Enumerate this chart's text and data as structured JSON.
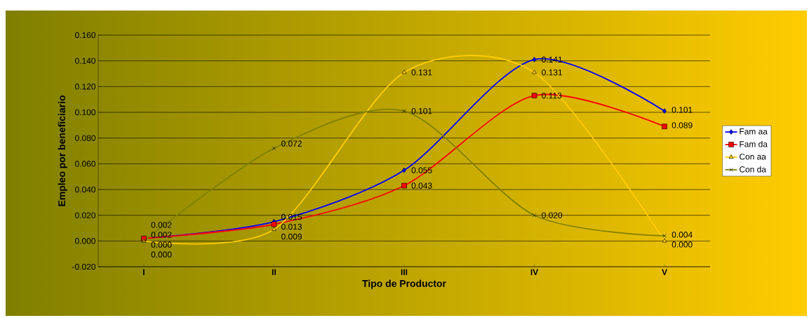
{
  "chart_data": {
    "type": "line",
    "xlabel": "Tipo de Productor",
    "ylabel": "Empleo por beneficiario",
    "categories": [
      "I",
      "II",
      "III",
      "IV",
      "V"
    ],
    "series": [
      {
        "name": "Fam aa",
        "color": "#0000ff",
        "marker": "diamond",
        "values": [
          0.002,
          0.015,
          0.055,
          0.141,
          0.101
        ],
        "value_labels": [
          "0.002",
          "0.015",
          "0.055",
          "0.141",
          "0.101"
        ]
      },
      {
        "name": "Fam da",
        "color": "#ff0000",
        "marker": "square",
        "values": [
          0.002,
          0.013,
          0.043,
          0.113,
          0.089
        ],
        "value_labels": [
          "0.002",
          "0.013",
          "0.043",
          "0.113",
          "0.089"
        ]
      },
      {
        "name": "Con aa",
        "color": "#ffcc00",
        "marker": "triangle",
        "values": [
          0.0,
          0.009,
          0.131,
          0.131,
          0.0
        ],
        "value_labels": [
          "0.000",
          "0.009",
          "0.131",
          "0.131",
          "0.000"
        ]
      },
      {
        "name": "Con da",
        "color": "#808000",
        "marker": "cross",
        "values": [
          0.0,
          0.072,
          0.101,
          0.02,
          0.004
        ],
        "value_labels": [
          "0.000",
          "0.072",
          "0.101",
          "0.020",
          "0.004"
        ]
      }
    ],
    "ylim": [
      -0.02,
      0.16
    ],
    "yticks": [
      {
        "value": -0.02,
        "label": "-0.020"
      },
      {
        "value": 0.0,
        "label": "0.000"
      },
      {
        "value": 0.02,
        "label": "0.020"
      },
      {
        "value": 0.04,
        "label": "0.040"
      },
      {
        "value": 0.06,
        "label": "0.060"
      },
      {
        "value": 0.08,
        "label": "0.080"
      },
      {
        "value": 0.1,
        "label": "0.100"
      },
      {
        "value": 0.12,
        "label": "0.120"
      },
      {
        "value": 0.14,
        "label": "0.140"
      },
      {
        "value": 0.16,
        "label": "0.160"
      }
    ],
    "grid": "y",
    "legend": "right",
    "line_style": "solid"
  }
}
